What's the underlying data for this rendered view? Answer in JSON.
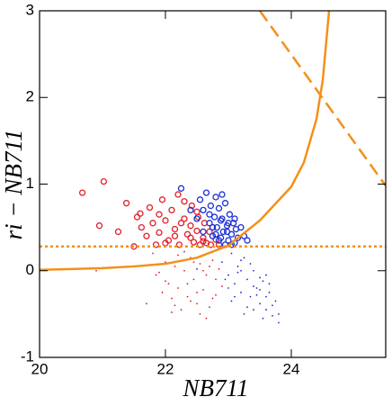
{
  "chart_data": {
    "type": "scatter",
    "x_label": "NB711",
    "y_label": "ri − NB711",
    "xlim": [
      20,
      25.5
    ],
    "xticks": [
      20,
      22,
      24
    ],
    "ylim": [
      -1,
      3
    ],
    "yticks": [
      -1,
      0,
      1,
      2,
      3
    ],
    "series": [
      {
        "marker": "circle",
        "color": "#e0202a",
        "x": [
          20.68,
          20.95,
          21.02,
          21.25,
          21.38,
          21.5,
          21.55,
          21.6,
          21.62,
          21.7,
          21.75,
          21.8,
          21.85,
          21.9,
          21.95,
          22.0,
          22.05,
          22.1,
          22.15,
          22.2,
          22.22,
          22.3,
          22.35,
          22.4,
          22.42,
          22.45,
          22.5,
          22.52,
          22.55,
          22.6,
          22.62,
          22.65,
          22.7,
          22.72,
          22.75,
          22.8,
          22.85,
          22.3,
          22.15,
          22.0,
          21.9,
          22.5,
          22.6,
          22.25,
          22.4
        ],
        "values": [
          0.9,
          0.52,
          1.03,
          0.45,
          0.78,
          0.28,
          0.62,
          0.66,
          0.5,
          0.4,
          0.73,
          0.55,
          0.3,
          0.65,
          0.82,
          0.58,
          0.35,
          0.7,
          0.48,
          0.88,
          0.3,
          0.6,
          0.42,
          0.52,
          0.75,
          0.33,
          0.46,
          0.62,
          0.3,
          0.38,
          0.55,
          0.32,
          0.45,
          0.3,
          0.5,
          0.36,
          0.3,
          0.8,
          0.4,
          0.32,
          0.44,
          0.68,
          0.34,
          0.55,
          0.38
        ]
      },
      {
        "marker": "circle",
        "color": "#1a2fd6",
        "x": [
          22.25,
          22.4,
          22.5,
          22.55,
          22.6,
          22.65,
          22.7,
          22.72,
          22.75,
          22.78,
          22.8,
          22.82,
          22.85,
          22.88,
          22.9,
          22.92,
          22.95,
          22.98,
          23.0,
          23.02,
          23.05,
          23.08,
          23.1,
          23.12,
          23.15,
          23.2,
          23.25,
          22.7,
          22.85,
          22.95,
          23.0,
          22.6,
          22.8,
          22.9,
          23.05,
          22.75,
          22.88,
          23.1,
          22.98,
          23.3
        ],
        "values": [
          0.95,
          0.7,
          0.6,
          0.82,
          0.45,
          0.9,
          0.55,
          0.75,
          0.4,
          0.62,
          0.85,
          0.5,
          0.72,
          0.38,
          0.6,
          0.45,
          0.78,
          0.52,
          0.35,
          0.65,
          0.42,
          0.55,
          0.32,
          0.48,
          0.38,
          0.5,
          0.4,
          0.65,
          0.35,
          0.3,
          0.55,
          0.7,
          0.42,
          0.88,
          0.3,
          0.5,
          0.58,
          0.6,
          0.45,
          0.35
        ]
      },
      {
        "marker": "dot",
        "color": "#e0202a",
        "x": [
          21.7,
          21.85,
          21.95,
          22.0,
          22.05,
          22.1,
          22.15,
          22.2,
          22.25,
          22.3,
          22.35,
          22.4,
          22.45,
          22.5,
          22.55,
          22.6,
          22.65,
          22.7,
          22.75,
          22.8,
          21.8,
          22.0,
          22.2,
          22.4,
          22.6,
          22.8,
          22.1,
          22.3,
          22.5,
          22.7,
          22.9,
          21.9,
          22.35,
          22.55,
          22.75,
          22.15,
          22.45,
          22.65,
          22.85,
          20.9
        ],
        "values": [
          -0.38,
          -0.05,
          -0.25,
          0.1,
          -0.15,
          -0.32,
          0.05,
          -0.2,
          -0.45,
          0.0,
          -0.3,
          0.15,
          -0.1,
          -0.38,
          0.08,
          -0.22,
          -0.05,
          -0.42,
          0.12,
          -0.28,
          0.2,
          -0.12,
          0.18,
          -0.35,
          0.0,
          -0.1,
          -0.48,
          0.22,
          -0.25,
          0.05,
          -0.18,
          -0.02,
          -0.15,
          -0.5,
          -0.32,
          -0.4,
          0.1,
          -0.55,
          0.02,
          0.0
        ]
      },
      {
        "marker": "dot",
        "color": "#1a2fd6",
        "x": [
          22.9,
          23.0,
          23.05,
          23.1,
          23.15,
          23.2,
          23.25,
          23.3,
          23.35,
          23.4,
          23.45,
          23.5,
          23.55,
          23.6,
          23.65,
          23.7,
          23.75,
          23.8,
          23.1,
          23.2,
          23.3,
          23.4,
          23.5,
          23.6,
          23.7,
          23.0,
          23.15,
          23.25,
          23.35,
          23.45,
          23.55,
          23.65,
          22.95,
          23.05,
          23.2,
          23.4,
          23.5,
          23.6,
          22.5,
          23.8
        ],
        "values": [
          0.1,
          -0.05,
          0.2,
          -0.15,
          0.05,
          -0.25,
          0.15,
          -0.1,
          -0.3,
          0.0,
          -0.2,
          -0.38,
          -0.12,
          -0.45,
          -0.25,
          -0.52,
          -0.35,
          -0.6,
          -0.3,
          0.0,
          -0.42,
          -0.18,
          -0.08,
          -0.3,
          -0.4,
          -0.2,
          -0.02,
          -0.5,
          0.08,
          -0.28,
          -0.55,
          -0.15,
          -0.1,
          -0.35,
          0.12,
          -0.45,
          -0.22,
          -0.05,
          0.02,
          -0.5
        ]
      },
      {
        "marker": "line",
        "style": "solid",
        "color": "#f39019",
        "x": [
          20,
          20.5,
          21,
          21.5,
          22,
          22.5,
          23,
          23.5,
          24,
          24.2,
          24.4,
          24.5,
          24.6
        ],
        "values": [
          0.01,
          0.02,
          0.03,
          0.05,
          0.08,
          0.15,
          0.29,
          0.58,
          0.97,
          1.25,
          1.75,
          2.2,
          3
        ]
      },
      {
        "marker": "line",
        "style": "dashed",
        "color": "#f39019",
        "x": [
          23.5,
          25.5
        ],
        "values": [
          3,
          0.98
        ]
      },
      {
        "marker": "line",
        "style": "dotted",
        "color": "#f39019",
        "x": [
          20,
          25.5
        ],
        "values": [
          0.28,
          0.28
        ]
      }
    ]
  }
}
